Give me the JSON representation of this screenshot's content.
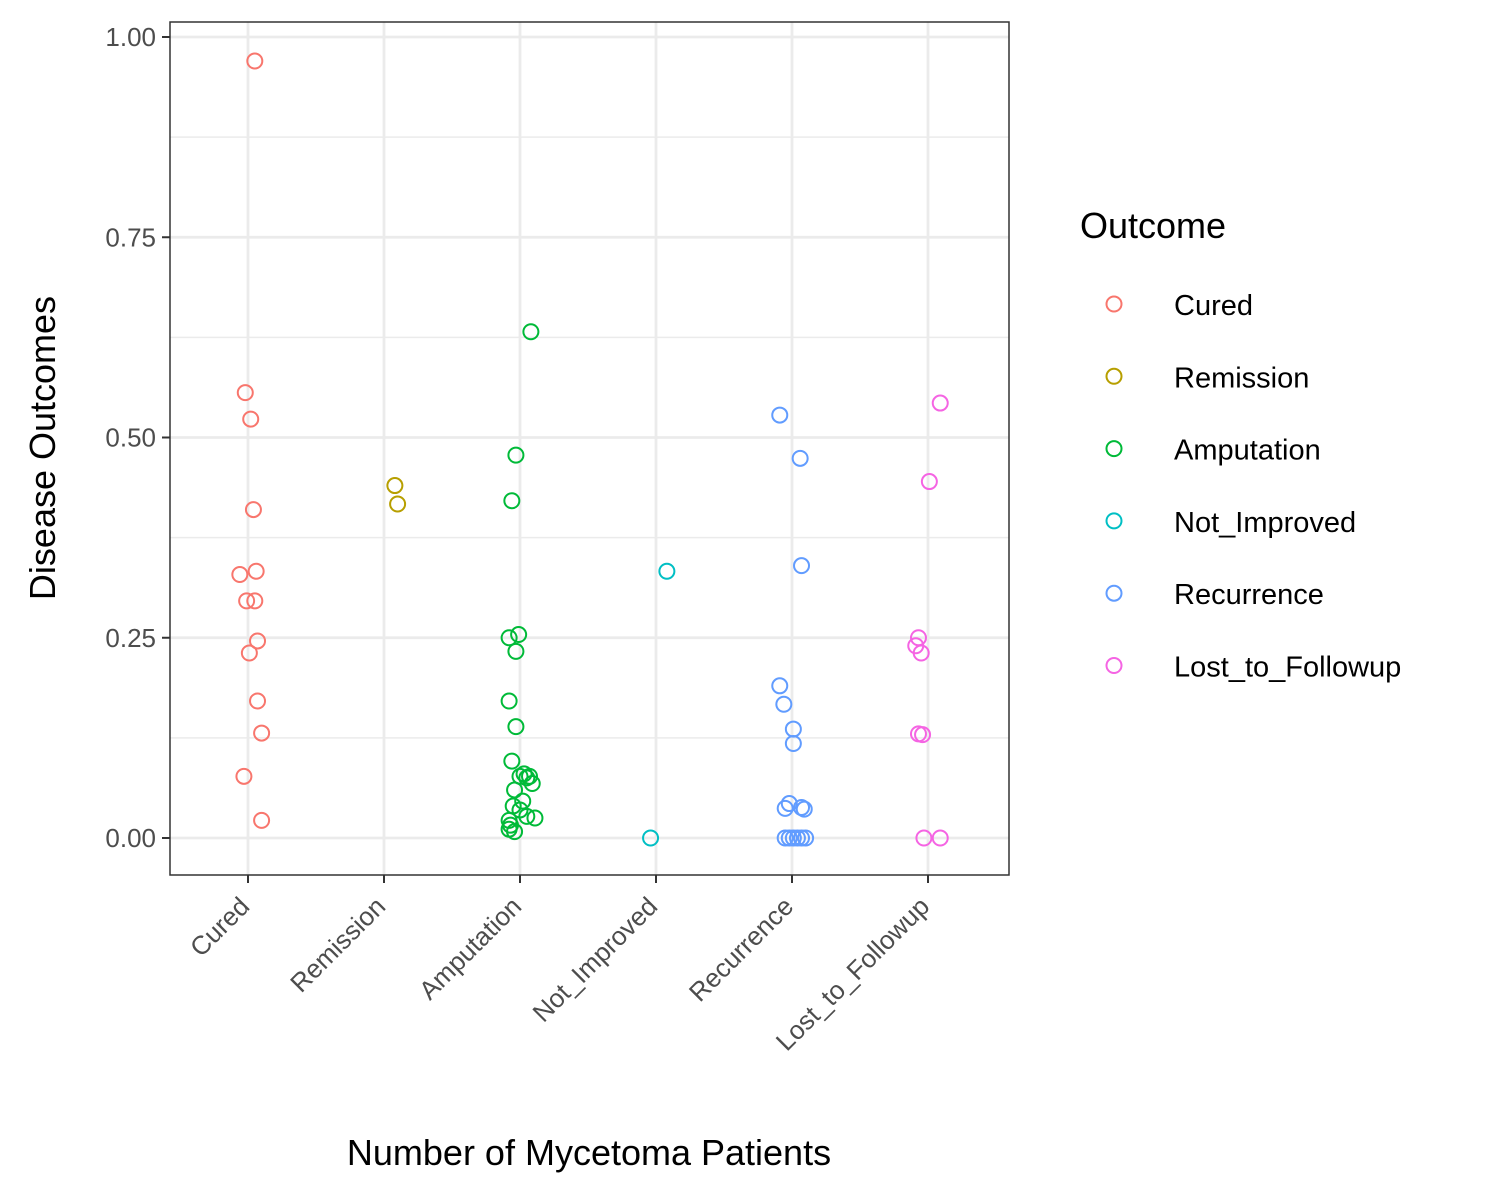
{
  "chart_data": {
    "type": "scatter",
    "xlabel": "Number of Mycetoma Patients",
    "ylabel": "Disease Outcomes",
    "categories": [
      "Cured",
      "Remission",
      "Amputation",
      "Not_Improved",
      "Recurrence",
      "Lost_to_Followup"
    ],
    "y_ticks": [
      "0.00",
      "0.25",
      "0.50",
      "0.75",
      "1.00"
    ],
    "ylim": [
      -0.045,
      1.02
    ],
    "grid": true,
    "legend": {
      "title": "Outcome",
      "position": "right",
      "entries": [
        "Cured",
        "Remission",
        "Amputation",
        "Not_Improved",
        "Recurrence",
        "Lost_to_Followup"
      ]
    },
    "series": [
      {
        "name": "Cured",
        "color": "#F8766D",
        "points": [
          {
            "x": 1.05,
            "y": 0.97
          },
          {
            "x": 0.98,
            "y": 0.556
          },
          {
            "x": 1.02,
            "y": 0.523
          },
          {
            "x": 1.04,
            "y": 0.41
          },
          {
            "x": 0.94,
            "y": 0.329
          },
          {
            "x": 1.06,
            "y": 0.333
          },
          {
            "x": 0.99,
            "y": 0.296
          },
          {
            "x": 1.05,
            "y": 0.296
          },
          {
            "x": 1.07,
            "y": 0.246
          },
          {
            "x": 1.01,
            "y": 0.231
          },
          {
            "x": 1.07,
            "y": 0.171
          },
          {
            "x": 1.1,
            "y": 0.131
          },
          {
            "x": 0.97,
            "y": 0.077
          },
          {
            "x": 1.1,
            "y": 0.022
          }
        ]
      },
      {
        "name": "Remission",
        "color": "#B79F00",
        "points": [
          {
            "x": 2.08,
            "y": 0.44
          },
          {
            "x": 2.1,
            "y": 0.417
          }
        ]
      },
      {
        "name": "Amputation",
        "color": "#00BA38",
        "points": [
          {
            "x": 3.08,
            "y": 0.632
          },
          {
            "x": 2.97,
            "y": 0.478
          },
          {
            "x": 2.94,
            "y": 0.421
          },
          {
            "x": 2.92,
            "y": 0.25
          },
          {
            "x": 2.99,
            "y": 0.254
          },
          {
            "x": 2.97,
            "y": 0.233
          },
          {
            "x": 2.92,
            "y": 0.171
          },
          {
            "x": 2.97,
            "y": 0.139
          },
          {
            "x": 2.94,
            "y": 0.096
          },
          {
            "x": 3.0,
            "y": 0.077
          },
          {
            "x": 3.05,
            "y": 0.075
          },
          {
            "x": 3.07,
            "y": 0.077
          },
          {
            "x": 3.03,
            "y": 0.08
          },
          {
            "x": 3.09,
            "y": 0.068
          },
          {
            "x": 2.96,
            "y": 0.06
          },
          {
            "x": 3.02,
            "y": 0.046
          },
          {
            "x": 2.95,
            "y": 0.04
          },
          {
            "x": 3.0,
            "y": 0.035
          },
          {
            "x": 3.05,
            "y": 0.027
          },
          {
            "x": 3.11,
            "y": 0.025
          },
          {
            "x": 2.92,
            "y": 0.022
          },
          {
            "x": 2.93,
            "y": 0.016
          },
          {
            "x": 2.92,
            "y": 0.011
          },
          {
            "x": 2.96,
            "y": 0.008
          }
        ]
      },
      {
        "name": "Not_Improved",
        "color": "#00BFC4",
        "points": [
          {
            "x": 4.08,
            "y": 0.333
          },
          {
            "x": 3.96,
            "y": 0.0
          }
        ]
      },
      {
        "name": "Recurrence",
        "color": "#619CFF",
        "points": [
          {
            "x": 4.91,
            "y": 0.528
          },
          {
            "x": 5.06,
            "y": 0.474
          },
          {
            "x": 5.07,
            "y": 0.34
          },
          {
            "x": 4.91,
            "y": 0.19
          },
          {
            "x": 4.94,
            "y": 0.167
          },
          {
            "x": 5.01,
            "y": 0.136
          },
          {
            "x": 5.01,
            "y": 0.118
          },
          {
            "x": 4.98,
            "y": 0.043
          },
          {
            "x": 4.95,
            "y": 0.037
          },
          {
            "x": 5.07,
            "y": 0.038
          },
          {
            "x": 5.09,
            "y": 0.036
          },
          {
            "x": 4.95,
            "y": 0.0
          },
          {
            "x": 4.98,
            "y": 0.0
          },
          {
            "x": 5.01,
            "y": 0.0
          },
          {
            "x": 5.04,
            "y": 0.0
          },
          {
            "x": 5.07,
            "y": 0.0
          },
          {
            "x": 5.1,
            "y": 0.0
          }
        ]
      },
      {
        "name": "Lost_to_Followup",
        "color": "#F564E3",
        "points": [
          {
            "x": 6.09,
            "y": 0.543
          },
          {
            "x": 6.01,
            "y": 0.445
          },
          {
            "x": 5.93,
            "y": 0.25
          },
          {
            "x": 5.91,
            "y": 0.24
          },
          {
            "x": 5.95,
            "y": 0.231
          },
          {
            "x": 5.93,
            "y": 0.13
          },
          {
            "x": 5.96,
            "y": 0.129
          },
          {
            "x": 5.97,
            "y": 0.0
          },
          {
            "x": 6.09,
            "y": 0.0
          }
        ]
      }
    ]
  }
}
